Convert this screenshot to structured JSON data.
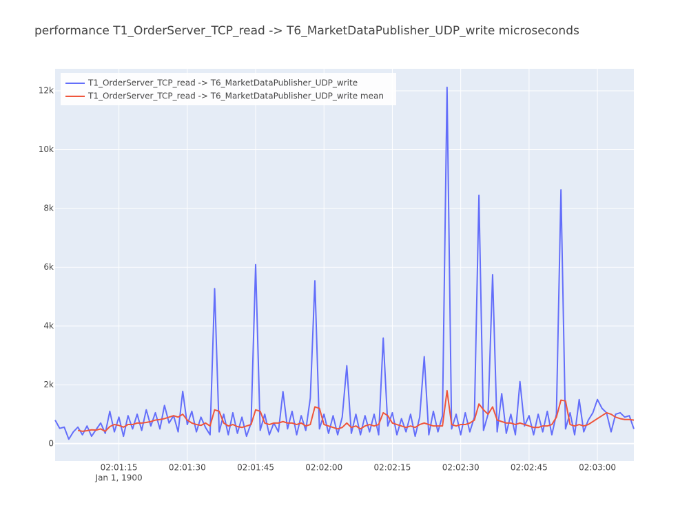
{
  "chart_data": {
    "type": "line",
    "title": "performance T1_OrderServer_TCP_read -> T6_MarketDataPublisher_UDP_write microseconds",
    "x": [
      "02:01:01",
      "02:01:02",
      "02:01:03",
      "02:01:04",
      "02:01:05",
      "02:01:06",
      "02:01:07",
      "02:01:08",
      "02:01:09",
      "02:01:10",
      "02:01:11",
      "02:01:12",
      "02:01:13",
      "02:01:14",
      "02:01:15",
      "02:01:16",
      "02:01:17",
      "02:01:18",
      "02:01:19",
      "02:01:20",
      "02:01:21",
      "02:01:22",
      "02:01:23",
      "02:01:24",
      "02:01:25",
      "02:01:26",
      "02:01:27",
      "02:01:28",
      "02:01:29",
      "02:01:30",
      "02:01:31",
      "02:01:32",
      "02:01:33",
      "02:01:34",
      "02:01:35",
      "02:01:36",
      "02:01:37",
      "02:01:38",
      "02:01:39",
      "02:01:40",
      "02:01:41",
      "02:01:42",
      "02:01:43",
      "02:01:44",
      "02:01:45",
      "02:01:46",
      "02:01:47",
      "02:01:48",
      "02:01:49",
      "02:01:50",
      "02:01:51",
      "02:01:52",
      "02:01:53",
      "02:01:54",
      "02:01:55",
      "02:01:56",
      "02:01:57",
      "02:01:58",
      "02:01:59",
      "02:02:00",
      "02:02:01",
      "02:02:02",
      "02:02:03",
      "02:02:04",
      "02:02:05",
      "02:02:06",
      "02:02:07",
      "02:02:08",
      "02:02:09",
      "02:02:10",
      "02:02:11",
      "02:02:12",
      "02:02:13",
      "02:02:14",
      "02:02:15",
      "02:02:16",
      "02:02:17",
      "02:02:18",
      "02:02:19",
      "02:02:20",
      "02:02:21",
      "02:02:22",
      "02:02:23",
      "02:02:24",
      "02:02:25",
      "02:02:26",
      "02:02:27",
      "02:02:28",
      "02:02:29",
      "02:02:30",
      "02:02:31",
      "02:02:32",
      "02:02:33",
      "02:02:34",
      "02:02:35",
      "02:02:36",
      "02:02:37",
      "02:02:38",
      "02:02:39",
      "02:02:40",
      "02:02:41",
      "02:02:42",
      "02:02:43",
      "02:02:44",
      "02:02:45",
      "02:02:46",
      "02:02:47",
      "02:02:48",
      "02:02:49",
      "02:02:50",
      "02:02:51",
      "02:02:52",
      "02:02:53",
      "02:02:54",
      "02:02:55",
      "02:02:56",
      "02:02:57",
      "02:02:58",
      "02:02:59",
      "02:03:00",
      "02:03:01",
      "02:03:02",
      "02:03:03",
      "02:03:04",
      "02:03:05",
      "02:03:06",
      "02:03:07",
      "02:03:08"
    ],
    "series": [
      {
        "name": "T1_OrderServer_TCP_read -> T6_MarketDataPublisher_UDP_write",
        "color": "#636efa",
        "values": [
          800,
          520,
          560,
          150,
          400,
          560,
          300,
          600,
          250,
          480,
          700,
          350,
          1100,
          400,
          900,
          250,
          950,
          500,
          1000,
          450,
          1150,
          600,
          1050,
          500,
          1300,
          700,
          950,
          400,
          1780,
          650,
          1100,
          400,
          900,
          550,
          300,
          5270,
          400,
          1000,
          300,
          1050,
          350,
          900,
          250,
          700,
          6090,
          450,
          1000,
          300,
          700,
          400,
          1770,
          500,
          1100,
          300,
          950,
          450,
          1550,
          5540,
          500,
          1000,
          350,
          950,
          300,
          900,
          2650,
          350,
          1000,
          300,
          950,
          400,
          1000,
          300,
          3590,
          600,
          1050,
          300,
          850,
          400,
          1000,
          250,
          900,
          2960,
          300,
          1100,
          400,
          950,
          12120,
          500,
          1000,
          300,
          1050,
          400,
          900,
          8450,
          450,
          1000,
          5750,
          400,
          1700,
          350,
          1000,
          300,
          2110,
          600,
          950,
          300,
          1000,
          400,
          1100,
          300,
          1000,
          8630,
          500,
          1050,
          300,
          1500,
          400,
          800,
          1050,
          1500,
          1200,
          1050,
          400,
          1000,
          1050,
          900,
          950,
          500
        ]
      },
      {
        "name": "T1_OrderServer_TCP_read -> T6_MarketDataPublisher_UDP_write mean",
        "color": "#EF553B",
        "values": [
          null,
          null,
          null,
          null,
          null,
          450,
          420,
          440,
          470,
          460,
          500,
          420,
          580,
          650,
          620,
          560,
          650,
          650,
          700,
          700,
          720,
          750,
          800,
          820,
          850,
          900,
          950,
          900,
          1000,
          800,
          700,
          650,
          620,
          700,
          600,
          1150,
          1100,
          700,
          600,
          650,
          580,
          550,
          600,
          650,
          1150,
          1100,
          700,
          650,
          700,
          700,
          750,
          700,
          700,
          650,
          700,
          600,
          650,
          1250,
          1200,
          650,
          600,
          550,
          500,
          550,
          700,
          550,
          600,
          500,
          600,
          650,
          600,
          650,
          1050,
          950,
          700,
          650,
          600,
          550,
          600,
          550,
          650,
          700,
          650,
          600,
          600,
          600,
          1800,
          650,
          600,
          650,
          650,
          700,
          800,
          1350,
          1150,
          1000,
          1250,
          800,
          750,
          700,
          700,
          650,
          700,
          650,
          600,
          550,
          550,
          600,
          600,
          650,
          900,
          1480,
          1450,
          650,
          600,
          650,
          600,
          650,
          750,
          850,
          950,
          1050,
          1000,
          900,
          850,
          820,
          820,
          800
        ]
      }
    ],
    "xlim": [
      "02:01:01",
      "02:03:08"
    ],
    "xticks": [
      "02:01:15",
      "02:01:30",
      "02:01:45",
      "02:02:00",
      "02:02:15",
      "02:02:30",
      "02:02:45",
      "02:03:00"
    ],
    "x_date_label": "Jan 1, 1900",
    "ylim": [
      -590,
      12750
    ],
    "yticks": [
      0,
      {
        "value": 2000,
        "label": "2k"
      },
      {
        "value": 4000,
        "label": "4k"
      },
      {
        "value": 6000,
        "label": "6k"
      },
      {
        "value": 8000,
        "label": "8k"
      },
      {
        "value": 10000,
        "label": "10k"
      },
      {
        "value": 12000,
        "label": "12k"
      }
    ],
    "grid": true,
    "legend": "top-left"
  }
}
